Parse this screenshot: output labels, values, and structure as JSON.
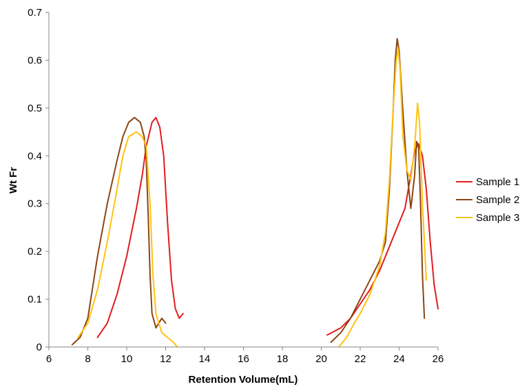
{
  "chart_data": {
    "type": "line",
    "title": "",
    "xlabel": "Retention Volume(mL)",
    "ylabel": "Wt Fr",
    "xlim": [
      6,
      26
    ],
    "ylim": [
      0,
      0.7
    ],
    "xticks": [
      6,
      8,
      10,
      12,
      14,
      16,
      18,
      20,
      22,
      24,
      26
    ],
    "yticks": [
      0,
      0.1,
      0.2,
      0.3,
      0.4,
      0.5,
      0.6,
      0.7
    ],
    "xtick_labels": [
      "6",
      "8",
      "10",
      "12",
      "14",
      "16",
      "18",
      "20",
      "22",
      "24",
      "26"
    ],
    "ytick_labels": [
      "0",
      "0.1",
      "0.2",
      "0.3",
      "0.4",
      "0.5",
      "0.6",
      "0.7"
    ],
    "grid": false,
    "legend_position": "right",
    "series": [
      {
        "name": "Sample 1",
        "color": "#e31a1c",
        "segments": [
          [
            [
              8.5,
              0.02
            ],
            [
              9.0,
              0.05
            ],
            [
              9.5,
              0.11
            ],
            [
              10.0,
              0.19
            ],
            [
              10.5,
              0.29
            ],
            [
              10.8,
              0.36
            ],
            [
              11.0,
              0.42
            ],
            [
              11.3,
              0.47
            ],
            [
              11.5,
              0.48
            ],
            [
              11.7,
              0.46
            ],
            [
              11.9,
              0.4
            ],
            [
              12.1,
              0.26
            ],
            [
              12.3,
              0.14
            ],
            [
              12.5,
              0.08
            ],
            [
              12.7,
              0.06
            ],
            [
              12.9,
              0.07
            ]
          ],
          [
            [
              20.3,
              0.025
            ],
            [
              21.0,
              0.04
            ],
            [
              21.5,
              0.06
            ],
            [
              22.0,
              0.09
            ],
            [
              22.5,
              0.12
            ],
            [
              23.0,
              0.16
            ],
            [
              23.5,
              0.21
            ],
            [
              24.0,
              0.26
            ],
            [
              24.3,
              0.29
            ],
            [
              24.6,
              0.36
            ],
            [
              24.8,
              0.41
            ],
            [
              25.0,
              0.425
            ],
            [
              25.2,
              0.4
            ],
            [
              25.4,
              0.33
            ],
            [
              25.6,
              0.22
            ],
            [
              25.8,
              0.13
            ],
            [
              26.0,
              0.08
            ]
          ]
        ]
      },
      {
        "name": "Sample 2",
        "color": "#8b4513",
        "segments": [
          [
            [
              7.2,
              0.005
            ],
            [
              7.6,
              0.02
            ],
            [
              8.0,
              0.06
            ],
            [
              8.5,
              0.19
            ],
            [
              9.0,
              0.3
            ],
            [
              9.5,
              0.39
            ],
            [
              9.8,
              0.44
            ],
            [
              10.1,
              0.47
            ],
            [
              10.4,
              0.48
            ],
            [
              10.7,
              0.47
            ],
            [
              10.9,
              0.44
            ],
            [
              11.0,
              0.39
            ],
            [
              11.1,
              0.28
            ],
            [
              11.2,
              0.15
            ],
            [
              11.3,
              0.07
            ],
            [
              11.5,
              0.04
            ],
            [
              11.8,
              0.06
            ],
            [
              12.0,
              0.05
            ]
          ],
          [
            [
              20.5,
              0.01
            ],
            [
              21.0,
              0.03
            ],
            [
              21.5,
              0.06
            ],
            [
              22.0,
              0.1
            ],
            [
              22.5,
              0.14
            ],
            [
              23.0,
              0.18
            ],
            [
              23.3,
              0.22
            ],
            [
              23.5,
              0.33
            ],
            [
              23.7,
              0.5
            ],
            [
              23.8,
              0.6
            ],
            [
              23.9,
              0.645
            ],
            [
              24.0,
              0.62
            ],
            [
              24.2,
              0.49
            ],
            [
              24.4,
              0.37
            ],
            [
              24.6,
              0.29
            ],
            [
              24.8,
              0.36
            ],
            [
              24.9,
              0.43
            ],
            [
              25.0,
              0.42
            ],
            [
              25.1,
              0.3
            ],
            [
              25.2,
              0.15
            ],
            [
              25.3,
              0.06
            ]
          ]
        ]
      },
      {
        "name": "Sample 3",
        "color": "#ffc20e",
        "segments": [
          [
            [
              7.5,
              0.02
            ],
            [
              8.0,
              0.05
            ],
            [
              8.5,
              0.12
            ],
            [
              9.0,
              0.22
            ],
            [
              9.5,
              0.33
            ],
            [
              9.8,
              0.4
            ],
            [
              10.1,
              0.44
            ],
            [
              10.5,
              0.45
            ],
            [
              10.8,
              0.44
            ],
            [
              11.0,
              0.42
            ],
            [
              11.2,
              0.3
            ],
            [
              11.35,
              0.15
            ],
            [
              11.5,
              0.07
            ],
            [
              11.8,
              0.03
            ],
            [
              12.1,
              0.02
            ],
            [
              12.4,
              0.01
            ],
            [
              12.6,
              0.0
            ]
          ],
          [
            [
              20.9,
              0.0
            ],
            [
              21.3,
              0.02
            ],
            [
              21.7,
              0.05
            ],
            [
              22.0,
              0.07
            ],
            [
              22.5,
              0.11
            ],
            [
              23.0,
              0.17
            ],
            [
              23.3,
              0.24
            ],
            [
              23.5,
              0.35
            ],
            [
              23.7,
              0.5
            ],
            [
              23.85,
              0.6
            ],
            [
              23.95,
              0.625
            ],
            [
              24.05,
              0.58
            ],
            [
              24.2,
              0.44
            ],
            [
              24.4,
              0.37
            ],
            [
              24.6,
              0.35
            ],
            [
              24.8,
              0.42
            ],
            [
              24.95,
              0.51
            ],
            [
              25.05,
              0.47
            ],
            [
              25.2,
              0.3
            ],
            [
              25.4,
              0.14
            ]
          ]
        ]
      }
    ]
  }
}
